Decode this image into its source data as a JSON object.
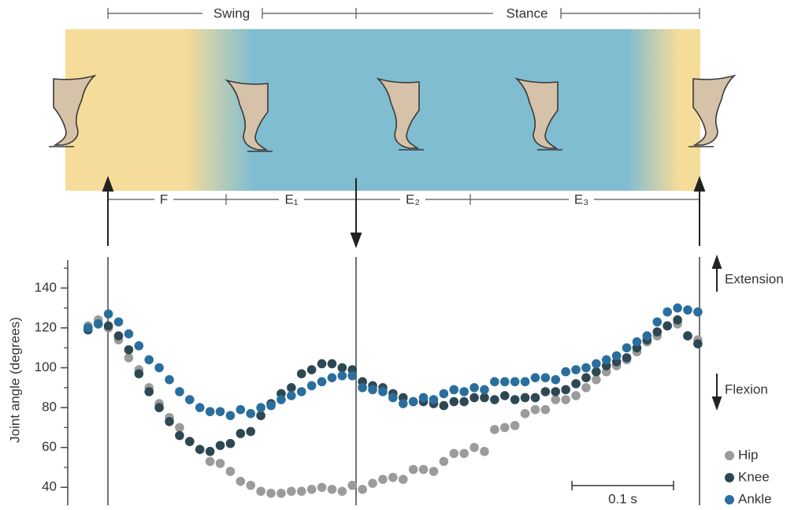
{
  "chart_data": {
    "type": "scatter",
    "y_label": "Joint angle (degrees)",
    "phase_labels": [
      "Swing",
      "Stance"
    ],
    "subphase_labels": [
      "F",
      "E₁",
      "E₂",
      "E₃"
    ],
    "direction_labels": [
      "Extension",
      "Flexion"
    ],
    "scale_bar": {
      "value": 0.1,
      "label": "0.1 s"
    },
    "x": [
      0,
      0.01,
      0.02,
      0.03,
      0.04,
      0.05,
      0.06,
      0.07,
      0.08,
      0.09,
      0.1,
      0.11,
      0.12,
      0.13,
      0.14,
      0.15,
      0.16,
      0.17,
      0.18,
      0.19,
      0.2,
      0.21,
      0.22,
      0.23,
      0.24,
      0.25,
      0.26,
      0.27,
      0.28,
      0.29,
      0.3,
      0.31,
      0.32,
      0.33,
      0.34,
      0.35,
      0.36,
      0.37,
      0.38,
      0.39,
      0.4,
      0.41,
      0.42,
      0.43,
      0.44,
      0.45,
      0.46,
      0.47,
      0.48,
      0.49,
      0.5,
      0.51,
      0.52,
      0.53,
      0.54,
      0.55,
      0.56,
      0.57,
      0.58,
      0.59,
      0.6
    ],
    "xlim": [
      -0.02,
      0.69
    ],
    "ylim": [
      31,
      154
    ],
    "yticks": [
      40,
      60,
      80,
      100,
      120,
      140
    ],
    "minor_yticks": [
      50,
      70,
      90,
      110,
      130,
      150
    ],
    "series": [
      {
        "name": "Hip",
        "color": "#9b9b9b",
        "values": [
          121,
          124,
          120,
          114,
          105,
          99,
          90,
          82,
          75,
          70,
          63,
          59,
          53,
          52,
          48,
          43,
          41,
          38,
          37,
          37,
          38,
          38,
          39,
          40,
          39,
          38,
          41,
          39,
          42,
          44,
          45,
          44,
          49,
          49,
          48,
          53,
          57,
          57,
          60,
          58,
          69,
          70,
          71,
          77,
          79,
          79,
          84,
          84,
          86,
          90,
          94,
          98,
          101,
          104,
          108,
          113,
          116,
          121,
          122,
          116,
          114
        ]
      },
      {
        "name": "Knee",
        "color": "#2e4853",
        "values": [
          119,
          122,
          121,
          116,
          109,
          97,
          88,
          80,
          73,
          66,
          63,
          59,
          58,
          61,
          62,
          67,
          68,
          76,
          82,
          87,
          90,
          97,
          99,
          102,
          102,
          100,
          99,
          93,
          91,
          90,
          87,
          85,
          83,
          83,
          82,
          81,
          83,
          83,
          85,
          85,
          84,
          86,
          84,
          85,
          85,
          88,
          88,
          89,
          92,
          95,
          98,
          101,
          103,
          105,
          110,
          114,
          118,
          121,
          124,
          116,
          112
        ]
      },
      {
        "name": "Ankle",
        "color": "#2a6e9e",
        "values": [
          120,
          122,
          127,
          123,
          117,
          111,
          104,
          100,
          94,
          88,
          84,
          80,
          78,
          78,
          76,
          79,
          77,
          80,
          81,
          84,
          86,
          88,
          91,
          93,
          95,
          96,
          96,
          90,
          89,
          88,
          85,
          82,
          83,
          85,
          84,
          87,
          89,
          88,
          90,
          89,
          93,
          93,
          93,
          93,
          95,
          95,
          94,
          98,
          99,
          100,
          102,
          104,
          106,
          110,
          113,
          116,
          123,
          128,
          130,
          129,
          128
        ]
      }
    ]
  }
}
